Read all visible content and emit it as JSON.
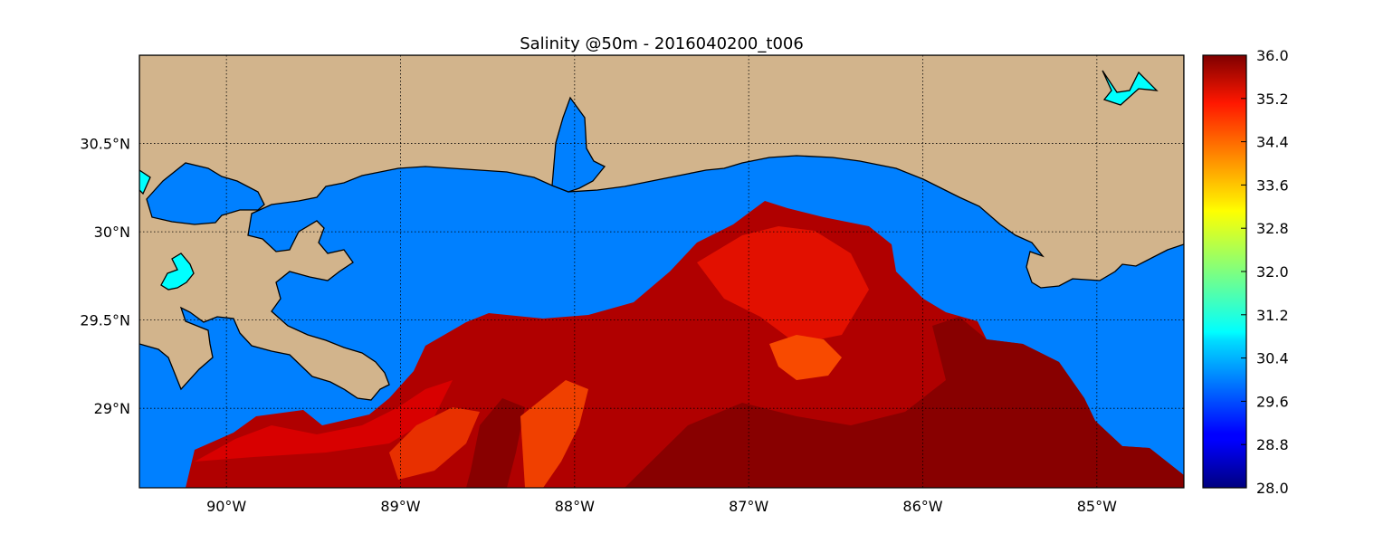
{
  "title": "Salinity @50m - 2016040200_t006",
  "map": {
    "lon_range": [
      -90.5,
      -84.5
    ],
    "lat_range": [
      28.55,
      31.0
    ],
    "lon_ticks": [
      {
        "value": -90,
        "label": "90°W"
      },
      {
        "value": -89,
        "label": "89°W"
      },
      {
        "value": -88,
        "label": "88°W"
      },
      {
        "value": -87,
        "label": "87°W"
      },
      {
        "value": -86,
        "label": "86°W"
      },
      {
        "value": -85,
        "label": "85°W"
      }
    ],
    "lat_ticks": [
      {
        "value": 30.5,
        "label": "30.5°N"
      },
      {
        "value": 30.0,
        "label": "30°N"
      },
      {
        "value": 29.5,
        "label": "29.5°N"
      },
      {
        "value": 29.0,
        "label": "29°N"
      }
    ],
    "grid": true,
    "colors": {
      "land": "#d2b48c",
      "ocean_mask": "#0080ff",
      "lake": "#00ffff",
      "coastline": "#000000"
    }
  },
  "colorbar": {
    "colormap": "jet",
    "min": 28.0,
    "max": 36.0,
    "ticks": [
      "28.0",
      "28.8",
      "29.6",
      "30.4",
      "31.2",
      "32.0",
      "32.8",
      "33.6",
      "34.4",
      "35.2",
      "36.0"
    ],
    "placement": "right"
  }
}
